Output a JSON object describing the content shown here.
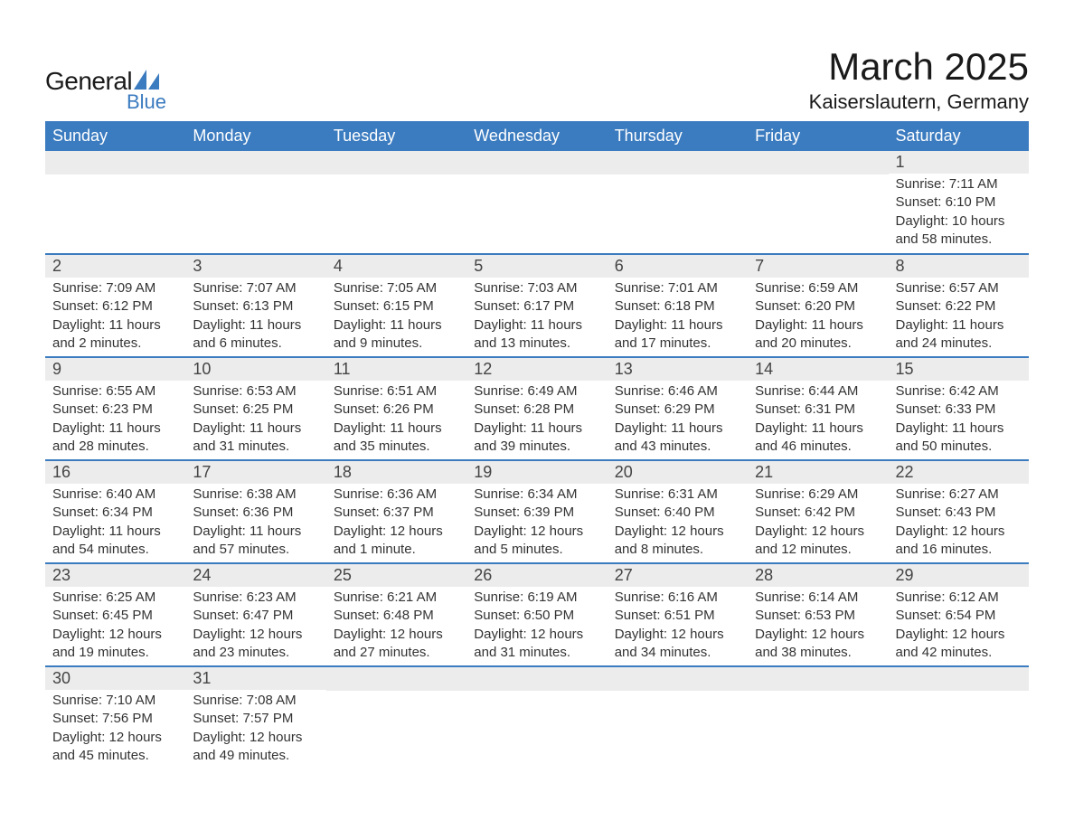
{
  "logo": {
    "text1": "General",
    "text2": "Blue",
    "accent_color": "#3b7bbf"
  },
  "title": "March 2025",
  "location": "Kaiserslautern, Germany",
  "colors": {
    "header_bg": "#3b7bbf",
    "header_text": "#ffffff",
    "daynum_bg": "#ececec",
    "row_divider": "#3b7bbf",
    "text": "#333333"
  },
  "columns": [
    "Sunday",
    "Monday",
    "Tuesday",
    "Wednesday",
    "Thursday",
    "Friday",
    "Saturday"
  ],
  "weeks": [
    [
      null,
      null,
      null,
      null,
      null,
      null,
      {
        "day": "1",
        "sunrise": "Sunrise: 7:11 AM",
        "sunset": "Sunset: 6:10 PM",
        "daylight": "Daylight: 10 hours and 58 minutes."
      }
    ],
    [
      {
        "day": "2",
        "sunrise": "Sunrise: 7:09 AM",
        "sunset": "Sunset: 6:12 PM",
        "daylight": "Daylight: 11 hours and 2 minutes."
      },
      {
        "day": "3",
        "sunrise": "Sunrise: 7:07 AM",
        "sunset": "Sunset: 6:13 PM",
        "daylight": "Daylight: 11 hours and 6 minutes."
      },
      {
        "day": "4",
        "sunrise": "Sunrise: 7:05 AM",
        "sunset": "Sunset: 6:15 PM",
        "daylight": "Daylight: 11 hours and 9 minutes."
      },
      {
        "day": "5",
        "sunrise": "Sunrise: 7:03 AM",
        "sunset": "Sunset: 6:17 PM",
        "daylight": "Daylight: 11 hours and 13 minutes."
      },
      {
        "day": "6",
        "sunrise": "Sunrise: 7:01 AM",
        "sunset": "Sunset: 6:18 PM",
        "daylight": "Daylight: 11 hours and 17 minutes."
      },
      {
        "day": "7",
        "sunrise": "Sunrise: 6:59 AM",
        "sunset": "Sunset: 6:20 PM",
        "daylight": "Daylight: 11 hours and 20 minutes."
      },
      {
        "day": "8",
        "sunrise": "Sunrise: 6:57 AM",
        "sunset": "Sunset: 6:22 PM",
        "daylight": "Daylight: 11 hours and 24 minutes."
      }
    ],
    [
      {
        "day": "9",
        "sunrise": "Sunrise: 6:55 AM",
        "sunset": "Sunset: 6:23 PM",
        "daylight": "Daylight: 11 hours and 28 minutes."
      },
      {
        "day": "10",
        "sunrise": "Sunrise: 6:53 AM",
        "sunset": "Sunset: 6:25 PM",
        "daylight": "Daylight: 11 hours and 31 minutes."
      },
      {
        "day": "11",
        "sunrise": "Sunrise: 6:51 AM",
        "sunset": "Sunset: 6:26 PM",
        "daylight": "Daylight: 11 hours and 35 minutes."
      },
      {
        "day": "12",
        "sunrise": "Sunrise: 6:49 AM",
        "sunset": "Sunset: 6:28 PM",
        "daylight": "Daylight: 11 hours and 39 minutes."
      },
      {
        "day": "13",
        "sunrise": "Sunrise: 6:46 AM",
        "sunset": "Sunset: 6:29 PM",
        "daylight": "Daylight: 11 hours and 43 minutes."
      },
      {
        "day": "14",
        "sunrise": "Sunrise: 6:44 AM",
        "sunset": "Sunset: 6:31 PM",
        "daylight": "Daylight: 11 hours and 46 minutes."
      },
      {
        "day": "15",
        "sunrise": "Sunrise: 6:42 AM",
        "sunset": "Sunset: 6:33 PM",
        "daylight": "Daylight: 11 hours and 50 minutes."
      }
    ],
    [
      {
        "day": "16",
        "sunrise": "Sunrise: 6:40 AM",
        "sunset": "Sunset: 6:34 PM",
        "daylight": "Daylight: 11 hours and 54 minutes."
      },
      {
        "day": "17",
        "sunrise": "Sunrise: 6:38 AM",
        "sunset": "Sunset: 6:36 PM",
        "daylight": "Daylight: 11 hours and 57 minutes."
      },
      {
        "day": "18",
        "sunrise": "Sunrise: 6:36 AM",
        "sunset": "Sunset: 6:37 PM",
        "daylight": "Daylight: 12 hours and 1 minute."
      },
      {
        "day": "19",
        "sunrise": "Sunrise: 6:34 AM",
        "sunset": "Sunset: 6:39 PM",
        "daylight": "Daylight: 12 hours and 5 minutes."
      },
      {
        "day": "20",
        "sunrise": "Sunrise: 6:31 AM",
        "sunset": "Sunset: 6:40 PM",
        "daylight": "Daylight: 12 hours and 8 minutes."
      },
      {
        "day": "21",
        "sunrise": "Sunrise: 6:29 AM",
        "sunset": "Sunset: 6:42 PM",
        "daylight": "Daylight: 12 hours and 12 minutes."
      },
      {
        "day": "22",
        "sunrise": "Sunrise: 6:27 AM",
        "sunset": "Sunset: 6:43 PM",
        "daylight": "Daylight: 12 hours and 16 minutes."
      }
    ],
    [
      {
        "day": "23",
        "sunrise": "Sunrise: 6:25 AM",
        "sunset": "Sunset: 6:45 PM",
        "daylight": "Daylight: 12 hours and 19 minutes."
      },
      {
        "day": "24",
        "sunrise": "Sunrise: 6:23 AM",
        "sunset": "Sunset: 6:47 PM",
        "daylight": "Daylight: 12 hours and 23 minutes."
      },
      {
        "day": "25",
        "sunrise": "Sunrise: 6:21 AM",
        "sunset": "Sunset: 6:48 PM",
        "daylight": "Daylight: 12 hours and 27 minutes."
      },
      {
        "day": "26",
        "sunrise": "Sunrise: 6:19 AM",
        "sunset": "Sunset: 6:50 PM",
        "daylight": "Daylight: 12 hours and 31 minutes."
      },
      {
        "day": "27",
        "sunrise": "Sunrise: 6:16 AM",
        "sunset": "Sunset: 6:51 PM",
        "daylight": "Daylight: 12 hours and 34 minutes."
      },
      {
        "day": "28",
        "sunrise": "Sunrise: 6:14 AM",
        "sunset": "Sunset: 6:53 PM",
        "daylight": "Daylight: 12 hours and 38 minutes."
      },
      {
        "day": "29",
        "sunrise": "Sunrise: 6:12 AM",
        "sunset": "Sunset: 6:54 PM",
        "daylight": "Daylight: 12 hours and 42 minutes."
      }
    ],
    [
      {
        "day": "30",
        "sunrise": "Sunrise: 7:10 AM",
        "sunset": "Sunset: 7:56 PM",
        "daylight": "Daylight: 12 hours and 45 minutes."
      },
      {
        "day": "31",
        "sunrise": "Sunrise: 7:08 AM",
        "sunset": "Sunset: 7:57 PM",
        "daylight": "Daylight: 12 hours and 49 minutes."
      },
      null,
      null,
      null,
      null,
      null
    ]
  ]
}
